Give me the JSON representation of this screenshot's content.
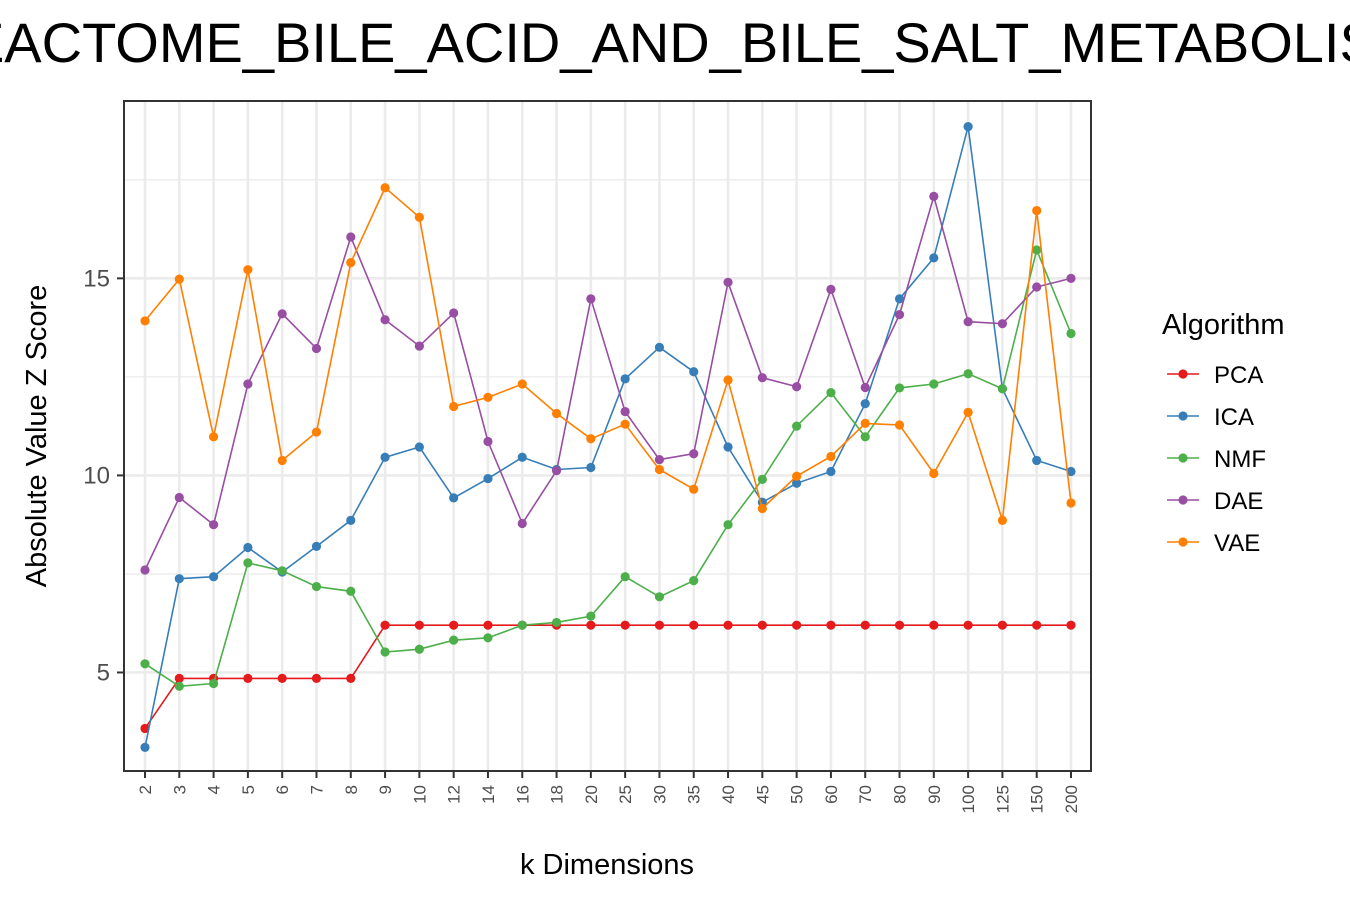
{
  "chart_data": {
    "type": "line",
    "title": "REACTOME_BILE_ACID_AND_BILE_SALT_METABOLISM",
    "xlabel": "k Dimensions",
    "ylabel": "Absolute Value Z Score",
    "categories": [
      "2",
      "3",
      "4",
      "5",
      "6",
      "7",
      "8",
      "9",
      "10",
      "12",
      "14",
      "16",
      "18",
      "20",
      "25",
      "30",
      "35",
      "40",
      "45",
      "50",
      "60",
      "70",
      "80",
      "90",
      "100",
      "125",
      "150",
      "200"
    ],
    "y_ticks": [
      5,
      10,
      15
    ],
    "ylim": [
      2.5,
      19.5
    ],
    "grid": true,
    "legend_title": "Algorithm",
    "legend_position": "right",
    "series": [
      {
        "name": "PCA",
        "color": "#e41a1c",
        "values": [
          3.58,
          4.85,
          4.85,
          4.85,
          4.85,
          4.85,
          4.85,
          6.2,
          6.2,
          6.2,
          6.2,
          6.2,
          6.2,
          6.2,
          6.2,
          6.2,
          6.2,
          6.2,
          6.2,
          6.2,
          6.2,
          6.2,
          6.2,
          6.2,
          6.2,
          6.2,
          6.2,
          6.2
        ]
      },
      {
        "name": "ICA",
        "color": "#377eb8",
        "values": [
          3.1,
          7.38,
          7.43,
          8.17,
          7.55,
          8.2,
          8.86,
          10.46,
          10.72,
          9.43,
          9.92,
          10.46,
          10.15,
          10.2,
          12.45,
          13.25,
          12.63,
          10.72,
          9.32,
          9.8,
          10.1,
          11.82,
          14.48,
          15.52,
          18.85,
          12.2,
          10.38,
          10.1
        ]
      },
      {
        "name": "NMF",
        "color": "#4daf4a",
        "values": [
          5.22,
          4.65,
          4.72,
          7.78,
          7.58,
          7.18,
          7.06,
          5.52,
          5.59,
          5.82,
          5.88,
          6.2,
          6.27,
          6.43,
          7.43,
          6.92,
          7.33,
          8.75,
          9.9,
          11.25,
          12.1,
          10.98,
          12.22,
          12.32,
          12.58,
          12.2,
          15.72,
          13.6
        ]
      },
      {
        "name": "DAE",
        "color": "#984ea3",
        "values": [
          7.6,
          9.44,
          8.75,
          12.32,
          14.1,
          13.22,
          16.05,
          13.95,
          13.28,
          14.12,
          10.86,
          8.78,
          10.12,
          14.48,
          11.62,
          10.4,
          10.55,
          14.9,
          12.48,
          12.25,
          14.72,
          12.23,
          14.08,
          17.08,
          13.9,
          13.85,
          14.78,
          15.0
        ]
      },
      {
        "name": "VAE",
        "color": "#ff7f00",
        "values": [
          13.92,
          14.98,
          10.98,
          15.22,
          10.38,
          11.1,
          15.4,
          17.3,
          16.55,
          11.75,
          11.98,
          12.32,
          11.57,
          10.93,
          11.3,
          10.15,
          9.65,
          12.42,
          9.16,
          9.98,
          10.48,
          11.32,
          11.28,
          10.05,
          11.6,
          8.86,
          16.72,
          9.3
        ]
      }
    ]
  }
}
